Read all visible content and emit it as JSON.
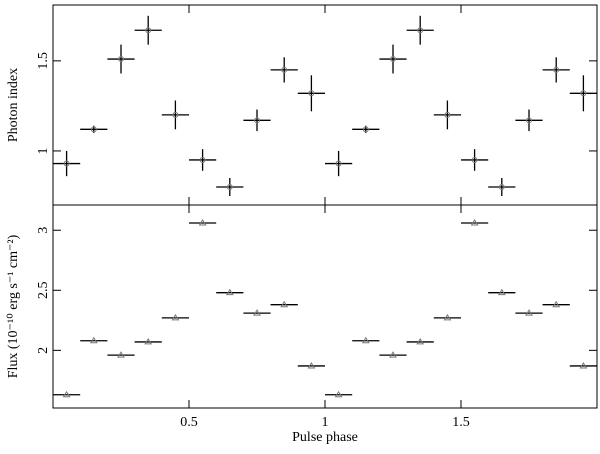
{
  "chart_data": [
    {
      "type": "errorbar",
      "ylabel": "Photon index",
      "marker": "circle",
      "color": "#000000",
      "x": [
        0.05,
        0.15,
        0.25,
        0.35,
        0.45,
        0.55,
        0.65,
        0.75,
        0.85,
        0.95,
        1.05,
        1.15,
        1.25,
        1.35,
        1.45,
        1.55,
        1.65,
        1.75,
        1.85,
        1.95
      ],
      "xerr": 0.05,
      "values": [
        0.93,
        1.12,
        1.51,
        1.67,
        1.2,
        0.95,
        0.8,
        1.17,
        1.45,
        1.32,
        0.93,
        1.12,
        1.51,
        1.67,
        1.2,
        0.95,
        0.8,
        1.17,
        1.45,
        1.32
      ],
      "errors": [
        0.07,
        0.02,
        0.08,
        0.08,
        0.08,
        0.06,
        0.05,
        0.06,
        0.07,
        0.1,
        0.07,
        0.02,
        0.08,
        0.08,
        0.08,
        0.06,
        0.05,
        0.06,
        0.07,
        0.1
      ],
      "xlim": [
        0,
        2
      ],
      "ylim": [
        0.7,
        1.81
      ],
      "yticks": [
        1,
        1.5
      ],
      "xticks": [
        0.5,
        1,
        1.5
      ]
    },
    {
      "type": "errorbar",
      "ylabel": "Flux (10⁻¹⁰ erg s⁻¹ cm⁻²)",
      "xlabel": "Pulse phase",
      "marker": "triangle",
      "color": "#000000",
      "x": [
        0.05,
        0.15,
        0.25,
        0.35,
        0.45,
        0.55,
        0.65,
        0.75,
        0.85,
        0.95,
        1.05,
        1.15,
        1.25,
        1.35,
        1.45,
        1.55,
        1.65,
        1.75,
        1.85,
        1.95
      ],
      "xerr": 0.05,
      "values": [
        1.63,
        2.08,
        1.96,
        2.07,
        2.27,
        3.06,
        2.48,
        2.31,
        2.38,
        1.87,
        1.63,
        2.08,
        1.96,
        2.07,
        2.27,
        3.06,
        2.48,
        2.31,
        2.38,
        1.87
      ],
      "xlim": [
        0,
        2
      ],
      "ylim": [
        1.52,
        3.21
      ],
      "yticks": [
        2,
        2.5,
        3
      ],
      "xticks": [
        0.5,
        1,
        1.5
      ]
    }
  ]
}
